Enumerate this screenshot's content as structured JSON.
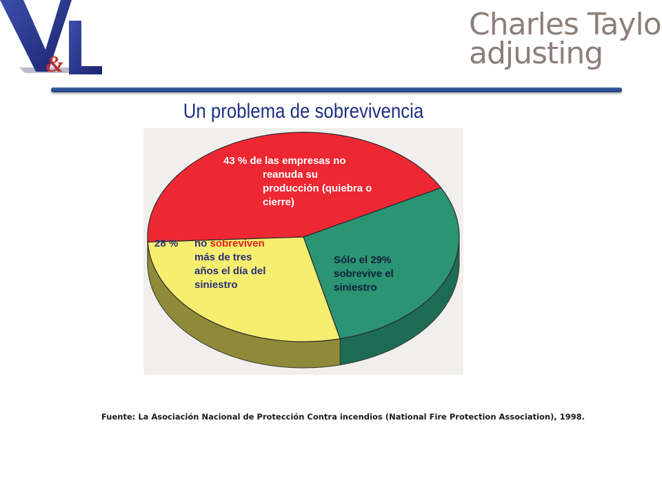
{
  "header": {
    "left_logo": {
      "name": "v-and-l-logo",
      "text": "V&L",
      "primary_color": "#22318c"
    },
    "right_logo": {
      "name": "charles-taylor-logo",
      "line1": "Charles Taylor",
      "line2": "adjusting",
      "color": "#8c7f78"
    }
  },
  "slide": {
    "title": "Un problema de sobrevivencia",
    "title_color": "#1f2f82",
    "source": "Fuente: La Asociación Nacional de Protección Contra incendios (National Fire  Protection Association), 1998."
  },
  "chart_data": {
    "type": "pie",
    "style": "3d",
    "slices": [
      {
        "key": "red",
        "value": 43,
        "label_lines": [
          "43 % de las empresas no",
          "reanuda su",
          "producción (quiebra o",
          "cierre)"
        ],
        "color": "#ee2833",
        "side_color": "#b31a24"
      },
      {
        "key": "green",
        "value": 29,
        "label_lines": [
          "Sólo el 29%",
          "sobrevive el",
          "siniestro"
        ],
        "color": "#2a9473",
        "side_color": "#1d6b55"
      },
      {
        "key": "yellow",
        "value": 28,
        "pct_text": "28 %",
        "label_prefix": "no ",
        "label_highlight": "sobreviven",
        "label_lines_rest": [
          "más de tres",
          "años el día del",
          "siniestro"
        ],
        "color": "#f5ee6e",
        "side_color": "#8e8a39"
      }
    ]
  }
}
